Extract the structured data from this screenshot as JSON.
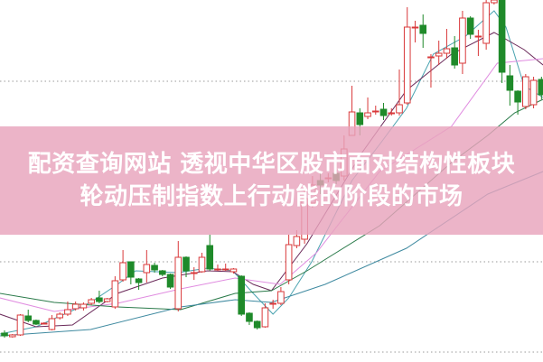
{
  "banner": {
    "line1": "配资查询网站  透视中华区股市面对结构性板块",
    "line2": "轮动压制指数上行动能的阶段的市场"
  },
  "chart_data": {
    "type": "candlestick",
    "grid": "dotted horizontal",
    "colors": {
      "up": "#d9383a",
      "down": "#1f8a2a",
      "background": "#ffffff",
      "banner": "#e8a4bc",
      "grid": "#999999"
    },
    "candles": [
      [
        0,
        3.1,
        2.8,
        3.4,
        2.6
      ],
      [
        1,
        2.7,
        2.9,
        3.0,
        2.6
      ],
      [
        2,
        2.9,
        5.1,
        5.2,
        2.8
      ],
      [
        3,
        5.0,
        4.5,
        5.7,
        4.3
      ],
      [
        4,
        4.5,
        4.1,
        4.6,
        4.0
      ],
      [
        5,
        4.2,
        4.2,
        4.3,
        4.1
      ],
      [
        6,
        3.5,
        4.7,
        5.1,
        3.4
      ],
      [
        7,
        4.8,
        5.2,
        5.4,
        4.6
      ],
      [
        8,
        5.2,
        5.7,
        6.6,
        5.0
      ],
      [
        9,
        5.8,
        6.3,
        6.6,
        5.6
      ],
      [
        10,
        5.9,
        6.3,
        6.5,
        5.6
      ],
      [
        11,
        6.4,
        6.8,
        7.0,
        6.2
      ],
      [
        12,
        7.0,
        6.6,
        7.8,
        6.4
      ],
      [
        13,
        6.6,
        6.9,
        7.0,
        6.5
      ],
      [
        14,
        6.0,
        8.9,
        9.4,
        5.8
      ],
      [
        15,
        9.0,
        10.9,
        12.3,
        8.8
      ],
      [
        16,
        11.0,
        9.3,
        11.0,
        8.5
      ],
      [
        17,
        9.1,
        8.7,
        9.2,
        7.9
      ],
      [
        18,
        9.8,
        10.7,
        12.3,
        8.7
      ],
      [
        19,
        10.6,
        10.1,
        10.9,
        9.8
      ],
      [
        20,
        10.0,
        9.6,
        10.1,
        9.4
      ],
      [
        21,
        9.6,
        8.2,
        9.7,
        8.0
      ],
      [
        22,
        5.8,
        11.5,
        13.3,
        5.5
      ],
      [
        23,
        11.5,
        10.0,
        11.6,
        9.3
      ],
      [
        24,
        9.8,
        9.8,
        10.4,
        9.0
      ],
      [
        25,
        9.9,
        11.5,
        12.0,
        9.8
      ],
      [
        26,
        12.8,
        10.2,
        14.0,
        10.0
      ],
      [
        27,
        10.2,
        10.2,
        10.7,
        10.0
      ],
      [
        28,
        10.2,
        10.2,
        10.8,
        10.0
      ],
      [
        29,
        9.9,
        10.2,
        10.3,
        9.7
      ],
      [
        30,
        9.4,
        5.2,
        9.5,
        5.0
      ],
      [
        31,
        5.3,
        4.4,
        5.4,
        4.0
      ],
      [
        32,
        4.4,
        3.7,
        4.5,
        3.5
      ],
      [
        33,
        3.8,
        5.9,
        6.4,
        3.7
      ],
      [
        34,
        6.4,
        6.4,
        6.8,
        5.8
      ],
      [
        35,
        6.4,
        7.7,
        8.2,
        6.2
      ],
      [
        36,
        9.0,
        12.9,
        14.0,
        8.5
      ],
      [
        37,
        12.8,
        13.8,
        14.5,
        12.5
      ],
      [
        38,
        13.5,
        18.0,
        19.0,
        13.0
      ],
      [
        39,
        17.5,
        19.5,
        20.5,
        17.0
      ],
      [
        40,
        20.0,
        19.5,
        21.0,
        18.5
      ],
      [
        41,
        20.3,
        20.3,
        20.8,
        19.8
      ],
      [
        42,
        20.8,
        20.0,
        21.2,
        19.6
      ],
      [
        43,
        20.5,
        23.5,
        25.0,
        20.0
      ],
      [
        44,
        25.0,
        27.6,
        30.5,
        25.0
      ],
      [
        45,
        27.5,
        26.2,
        28.0,
        25.0
      ],
      [
        46,
        27.1,
        27.5,
        29.2,
        26.8
      ],
      [
        47,
        27.7,
        27.7,
        28.3,
        27.3
      ],
      [
        48,
        27.9,
        27.2,
        28.6,
        26.7
      ],
      [
        49,
        27.5,
        27.5,
        28.0,
        27.2
      ],
      [
        50,
        27.5,
        28.4,
        32.3,
        27.2
      ],
      [
        51,
        28.6,
        37.0,
        39.2,
        28.4
      ],
      [
        52,
        37.0,
        37.0,
        37.7,
        35.3
      ],
      [
        53,
        37.2,
        36.3,
        38.4,
        34.7
      ],
      [
        54,
        33.7,
        33.7,
        34.0,
        30.3
      ],
      [
        55,
        33.8,
        34.1,
        35.5,
        32.8
      ],
      [
        56,
        34.1,
        34.6,
        36.8,
        33.5
      ],
      [
        57,
        34.7,
        32.8,
        36.0,
        32.4
      ],
      [
        58,
        33.0,
        38.0,
        38.8,
        31.8
      ],
      [
        59,
        38.0,
        36.2,
        38.2,
        35.7
      ],
      [
        60,
        36.0,
        36.0,
        36.7,
        33.8
      ],
      [
        61,
        35.2,
        39.7,
        40.0,
        34.5
      ],
      [
        62,
        39.7,
        40.0,
        40.0,
        39.5
      ],
      [
        63,
        40.0,
        32.0,
        40.0,
        30.8
      ],
      [
        64,
        31.6,
        30.0,
        32.8,
        28.3
      ],
      [
        65,
        29.9,
        28.7,
        30.0,
        27.3
      ],
      [
        66,
        28.2,
        31.5,
        31.8,
        27.9
      ],
      [
        67,
        28.4,
        31.1,
        31.5,
        28.0
      ],
      [
        68,
        31.2,
        29.5,
        31.5,
        29.0
      ]
    ],
    "candle_fields": [
      "day",
      "open",
      "close",
      "high",
      "low"
    ],
    "moving_averages": [
      {
        "color": "#4aa3b0",
        "points": [
          [
            -0.6,
            3.0
          ],
          [
            4,
            3.8
          ],
          [
            10.9,
            6.5
          ],
          [
            14.3,
            8.5
          ],
          [
            16.6,
            10.0
          ],
          [
            22,
            9.8
          ],
          [
            25.7,
            10.3
          ],
          [
            28.9,
            10.0
          ],
          [
            31.5,
            7.5
          ],
          [
            34,
            5.2
          ],
          [
            36,
            7.0
          ],
          [
            38.9,
            11.0
          ],
          [
            44,
            20.0
          ],
          [
            47.5,
            24.0
          ],
          [
            50.9,
            28.0
          ],
          [
            54.3,
            34.0
          ],
          [
            58.4,
            36.0
          ],
          [
            62,
            38.8
          ],
          [
            63.5,
            37.0
          ],
          [
            65.8,
            30.5
          ],
          [
            68.2,
            29.2
          ]
        ]
      },
      {
        "color": "#6b2a5a",
        "points": [
          [
            -0.6,
            5.2
          ],
          [
            4,
            3.8
          ],
          [
            8.6,
            4.0
          ],
          [
            14.3,
            7.5
          ],
          [
            20,
            9.2
          ],
          [
            25.7,
            10.0
          ],
          [
            28.9,
            9.9
          ],
          [
            31.5,
            8.5
          ],
          [
            33.8,
            7.8
          ],
          [
            38.3,
            13.0
          ],
          [
            45.2,
            23.0
          ],
          [
            50.9,
            30.0
          ],
          [
            56.6,
            34.0
          ],
          [
            62,
            36.4
          ],
          [
            65.8,
            34.5
          ],
          [
            68.2,
            32.8
          ]
        ]
      },
      {
        "color": "#e08ce0",
        "points": [
          [
            -0.6,
            7.0
          ],
          [
            6.3,
            5.5
          ],
          [
            14.3,
            6.4
          ],
          [
            22.3,
            8.0
          ],
          [
            29.2,
            9.2
          ],
          [
            34.9,
            8.5
          ],
          [
            39.5,
            12.0
          ],
          [
            47.5,
            21.0
          ],
          [
            56.6,
            26.0
          ],
          [
            62.4,
            33.0
          ],
          [
            68.2,
            33.5
          ]
        ]
      },
      {
        "color": "#2a7a4a",
        "points": [
          [
            -0.6,
            7.5
          ],
          [
            6.3,
            6.5
          ],
          [
            14.3,
            6.0
          ],
          [
            22.3,
            5.7
          ],
          [
            29.2,
            7.5
          ],
          [
            33.8,
            7.8
          ],
          [
            38.3,
            10.0
          ],
          [
            47.5,
            15.0
          ],
          [
            56.6,
            22.0
          ],
          [
            61.2,
            25.0
          ],
          [
            64.6,
            27.5
          ],
          [
            68.2,
            29.0
          ]
        ]
      },
      {
        "color": "#3f8aa0",
        "points": [
          [
            -0.6,
            2.8
          ],
          [
            10.9,
            3.5
          ],
          [
            22.3,
            6.0
          ],
          [
            29.2,
            6.8
          ],
          [
            33.8,
            6.5
          ],
          [
            40.6,
            8.5
          ],
          [
            50.9,
            12.5
          ],
          [
            61.2,
            18.5
          ],
          [
            68.2,
            21.0
          ]
        ]
      }
    ],
    "grid_levels": [
      31.0,
      11.0,
      1.0
    ]
  }
}
